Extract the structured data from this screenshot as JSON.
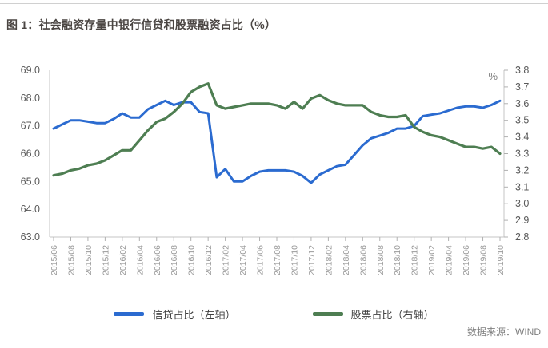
{
  "page": {
    "title": "图 1：社会融资存量中银行信贷和股票融资占比（%）",
    "source": "数据来源：WIND"
  },
  "chart_data": {
    "type": "line",
    "title": "图 1：社会融资存量中银行信贷和股票融资占比（%）",
    "grid": false,
    "legend_position": "bottom",
    "x_tick_every": 2,
    "x": [
      "2015/06",
      "2015/07",
      "2015/08",
      "2015/09",
      "2015/10",
      "2015/11",
      "2015/12",
      "2016/01",
      "2016/02",
      "2016/03",
      "2016/04",
      "2016/05",
      "2016/06",
      "2016/07",
      "2016/08",
      "2016/09",
      "2016/10",
      "2016/11",
      "2016/12",
      "2017/01",
      "2017/02",
      "2017/03",
      "2017/04",
      "2017/05",
      "2017/06",
      "2017/07",
      "2017/08",
      "2017/09",
      "2017/10",
      "2017/11",
      "2017/12",
      "2018/01",
      "2018/02",
      "2018/03",
      "2018/04",
      "2018/05",
      "2018/06",
      "2018/07",
      "2018/08",
      "2018/09",
      "2018/10",
      "2018/11",
      "2018/12",
      "2019/01",
      "2019/02",
      "2019/03",
      "2019/04",
      "2019/05",
      "2019/06",
      "2019/07",
      "2019/08",
      "2019/09",
      "2019/10"
    ],
    "series": [
      {
        "name": "信贷占比（左轴）",
        "axis": "left",
        "color": "#2b6bd0",
        "values": [
          66.9,
          67.05,
          67.2,
          67.2,
          67.15,
          67.1,
          67.1,
          67.25,
          67.45,
          67.3,
          67.3,
          67.6,
          67.75,
          67.9,
          67.75,
          67.85,
          67.85,
          67.5,
          67.45,
          65.15,
          65.45,
          65.0,
          65.0,
          65.2,
          65.35,
          65.4,
          65.4,
          65.4,
          65.35,
          65.2,
          64.95,
          65.25,
          65.4,
          65.55,
          65.6,
          65.95,
          66.3,
          66.55,
          66.65,
          66.75,
          66.9,
          66.9,
          67.0,
          67.35,
          67.4,
          67.45,
          67.55,
          67.65,
          67.7,
          67.7,
          67.65,
          67.75,
          67.9
        ]
      },
      {
        "name": "股票占比（右轴）",
        "axis": "right",
        "color": "#4e7e52",
        "values": [
          3.17,
          3.18,
          3.2,
          3.21,
          3.23,
          3.24,
          3.26,
          3.29,
          3.32,
          3.32,
          3.38,
          3.44,
          3.49,
          3.51,
          3.55,
          3.6,
          3.67,
          3.7,
          3.72,
          3.59,
          3.57,
          3.58,
          3.59,
          3.6,
          3.6,
          3.6,
          3.59,
          3.57,
          3.61,
          3.57,
          3.63,
          3.65,
          3.62,
          3.6,
          3.59,
          3.59,
          3.59,
          3.55,
          3.53,
          3.52,
          3.52,
          3.53,
          3.46,
          3.43,
          3.41,
          3.4,
          3.38,
          3.36,
          3.34,
          3.34,
          3.33,
          3.34,
          3.3
        ]
      }
    ],
    "left_axis": {
      "min": 63.0,
      "max": 69.0,
      "step": 1.0
    },
    "right_axis": {
      "min": 2.8,
      "max": 3.8,
      "step": 0.1,
      "unit_label": "%"
    },
    "colors": {
      "axis_line": "#c6c6c6",
      "tick_mark": "#b0b0b0",
      "y_label_text": "#595959",
      "x_label_text": "#9a9a9a",
      "unit_text": "#808080"
    }
  }
}
